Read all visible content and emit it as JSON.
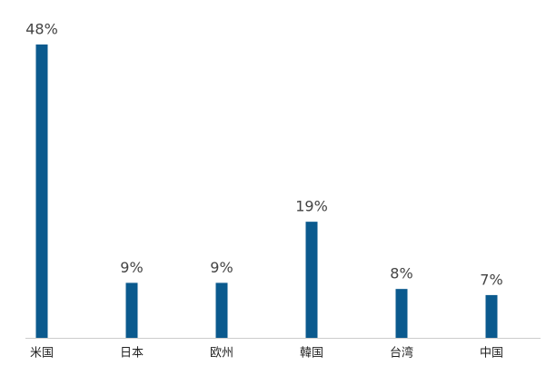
{
  "chart_data": {
    "type": "bar",
    "categories": [
      "米国",
      "日本",
      "欧州",
      "韓国",
      "台湾",
      "中国"
    ],
    "values": [
      48,
      9,
      9,
      19,
      8,
      7
    ],
    "value_labels": [
      "48%",
      "9%",
      "9%",
      "19%",
      "8%",
      "7%"
    ],
    "color": "#0b5a8e"
  }
}
